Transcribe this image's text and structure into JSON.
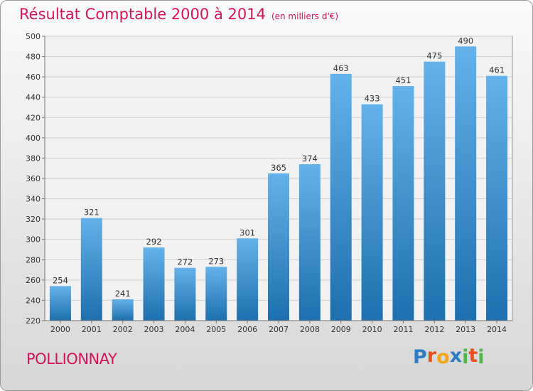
{
  "title": "Résultat Comptable 2000 à 2014",
  "subtitle": "(en milliers d'€)",
  "commune": "POLLIONNAY",
  "logo": {
    "letters": [
      "P",
      "r",
      "o",
      "x",
      "i",
      "t",
      "i"
    ],
    "colors": [
      "#2e7dc4",
      "#e8501f",
      "#f3a81b",
      "#2e7dc4",
      "#4db848",
      "#e8501f",
      "#4db848"
    ]
  },
  "colors": {
    "accent": "#d4145a",
    "bar_light": "#64b2ea",
    "bar_dark": "#1e6fae"
  },
  "chart_data": {
    "type": "bar",
    "title": "Résultat Comptable 2000 à 2014",
    "categories": [
      "2000",
      "2001",
      "2002",
      "2003",
      "2004",
      "2005",
      "2006",
      "2007",
      "2008",
      "2009",
      "2010",
      "2011",
      "2012",
      "2013",
      "2014"
    ],
    "values": [
      254,
      321,
      241,
      292,
      272,
      273,
      301,
      365,
      374,
      463,
      433,
      451,
      475,
      490,
      461
    ],
    "ylim": [
      220,
      500
    ],
    "yticks": [
      220,
      240,
      260,
      280,
      300,
      320,
      340,
      360,
      380,
      400,
      420,
      440,
      460,
      480,
      500
    ],
    "grid": true,
    "data_labels": true
  }
}
